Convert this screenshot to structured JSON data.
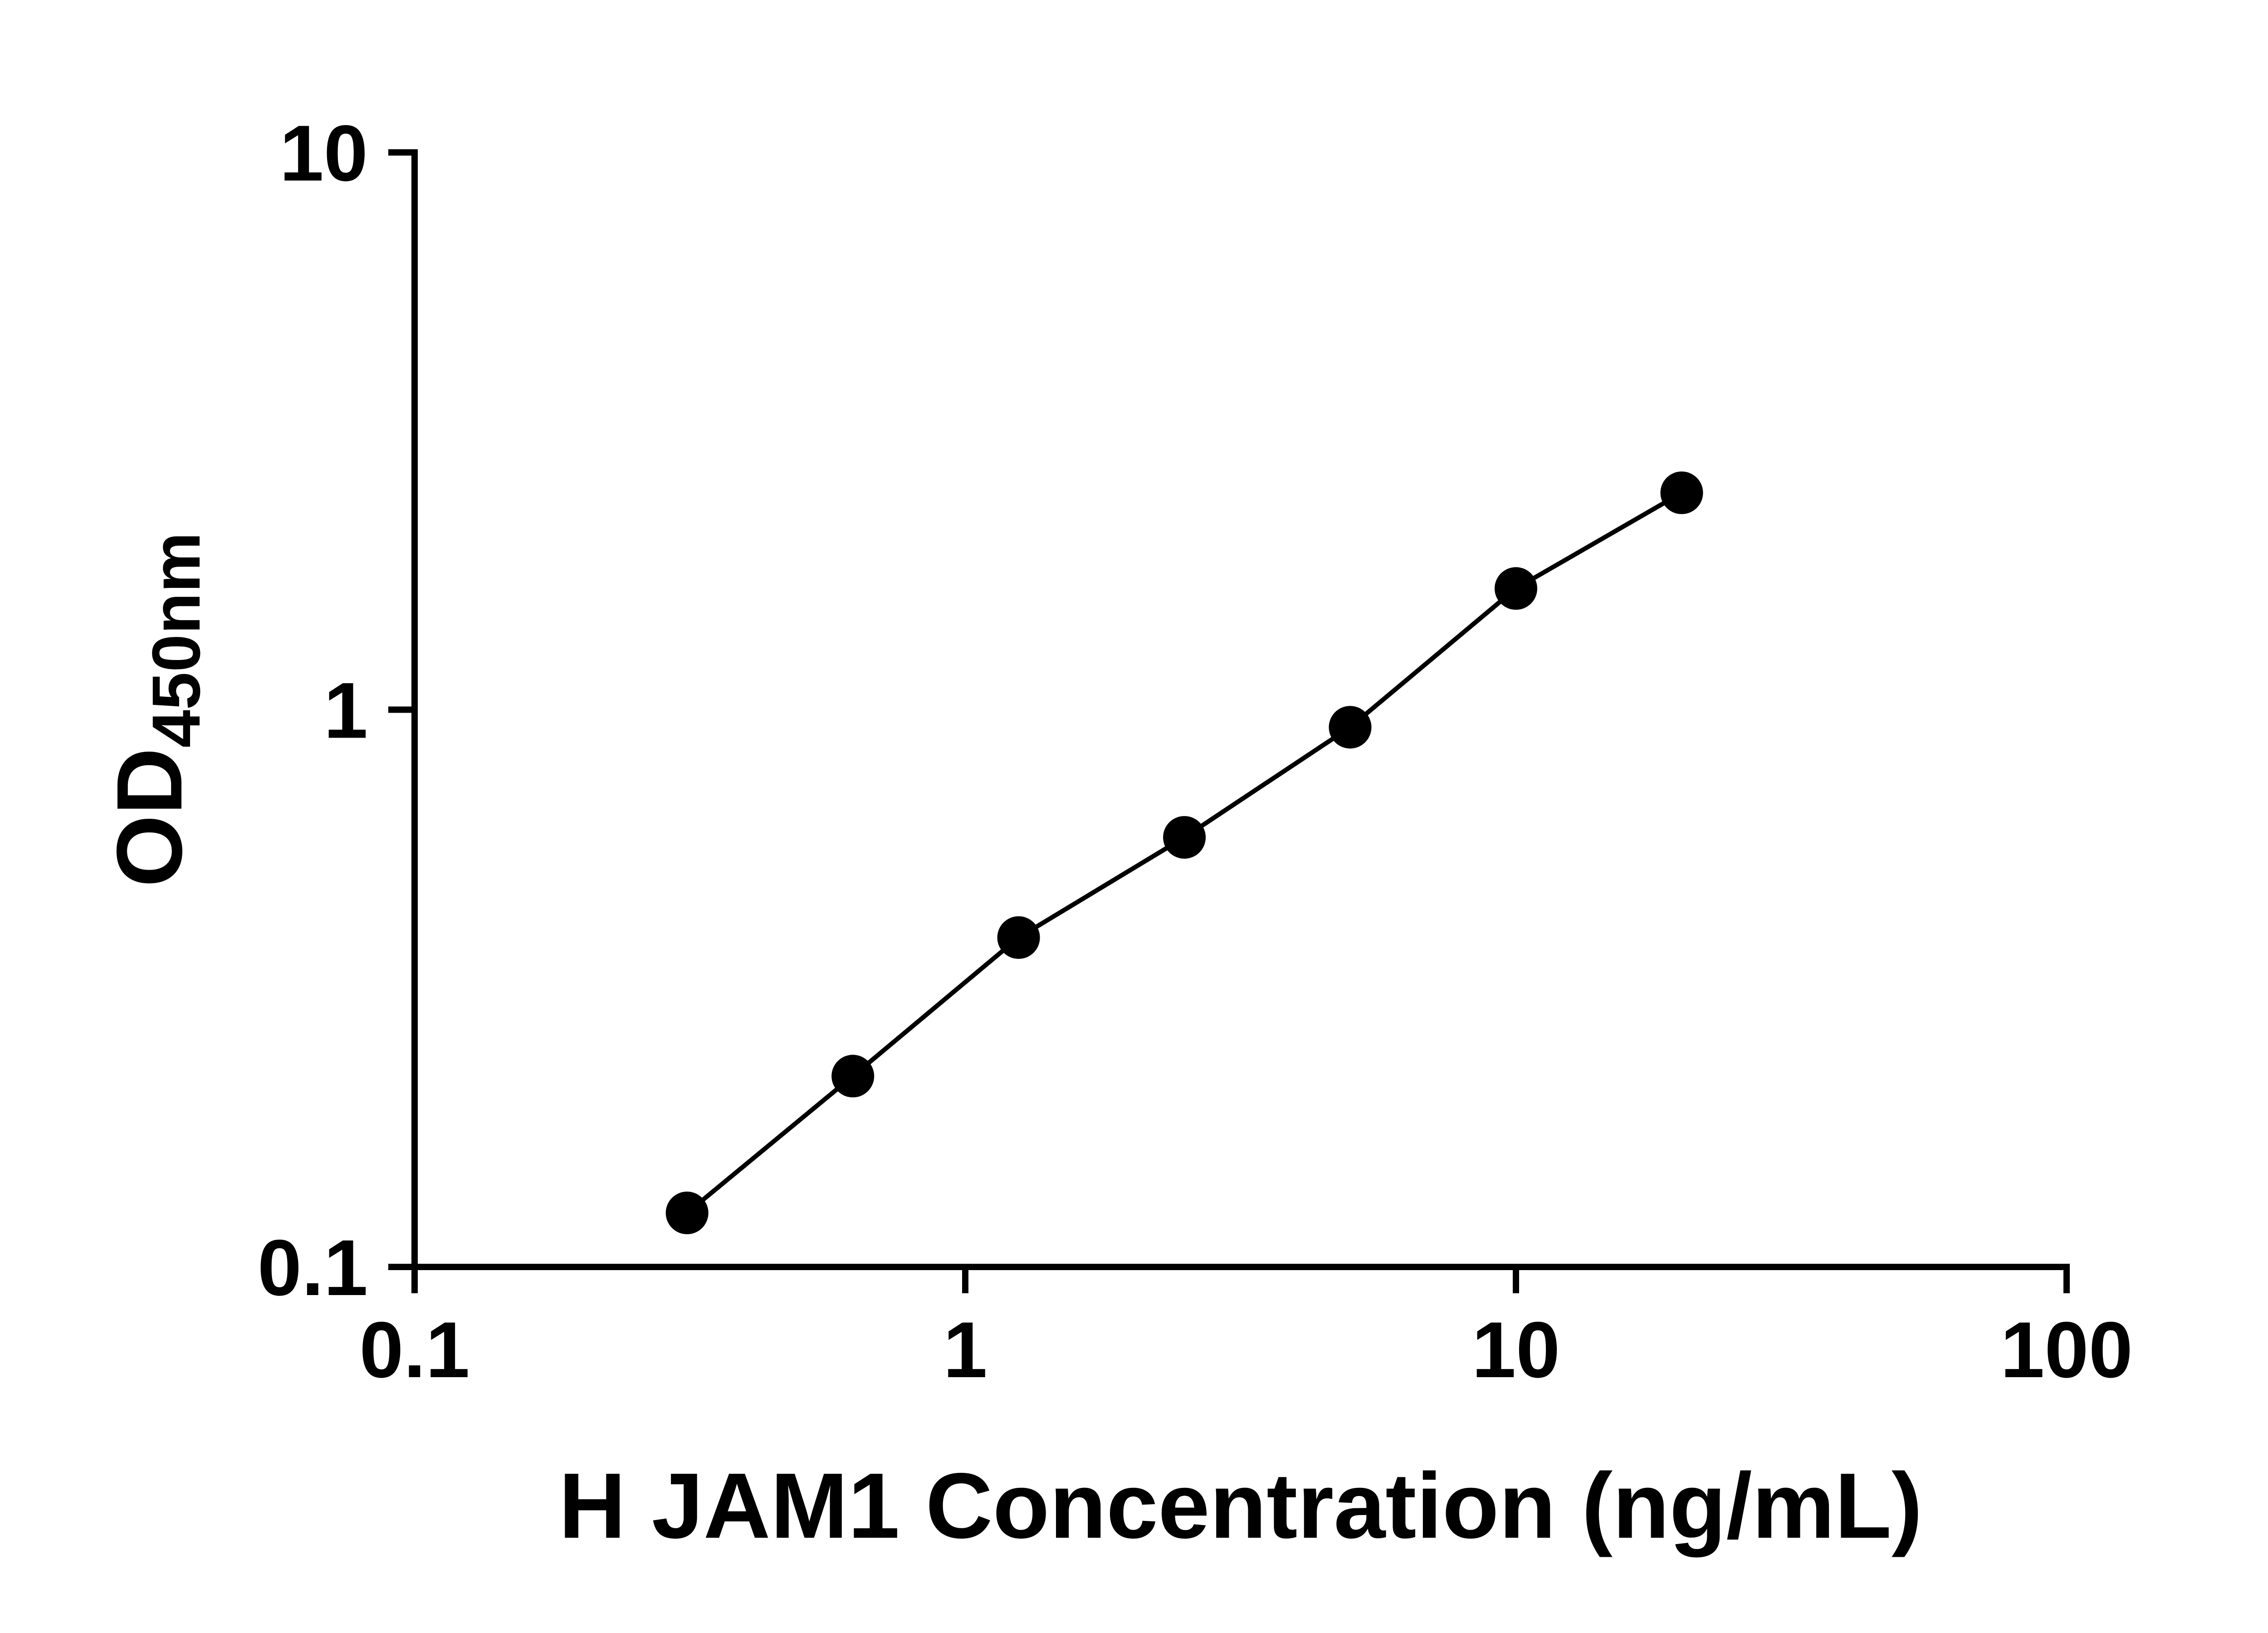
{
  "figure": {
    "background": "#ffffff"
  },
  "chart_data": {
    "type": "scatter",
    "line_overlay": true,
    "title": "",
    "xlabel": "H JAM1 Concentration (ng/mL)",
    "ylabel_main": "OD",
    "ylabel_sub": "450nm",
    "xscale": "log",
    "yscale": "log",
    "xlim": [
      0.1,
      100
    ],
    "ylim": [
      0.1,
      10
    ],
    "x_ticks": [
      0.1,
      1,
      10,
      100
    ],
    "y_ticks": [
      10,
      1,
      0.1
    ],
    "x": [
      0.3125,
      0.625,
      1.25,
      2.5,
      5,
      10,
      20
    ],
    "y": [
      0.125,
      0.22,
      0.39,
      0.59,
      0.93,
      1.65,
      2.45
    ],
    "marker_color": "#000000",
    "line_color": "#000000",
    "axis_color": "#000000",
    "grid": false,
    "legend": false
  }
}
